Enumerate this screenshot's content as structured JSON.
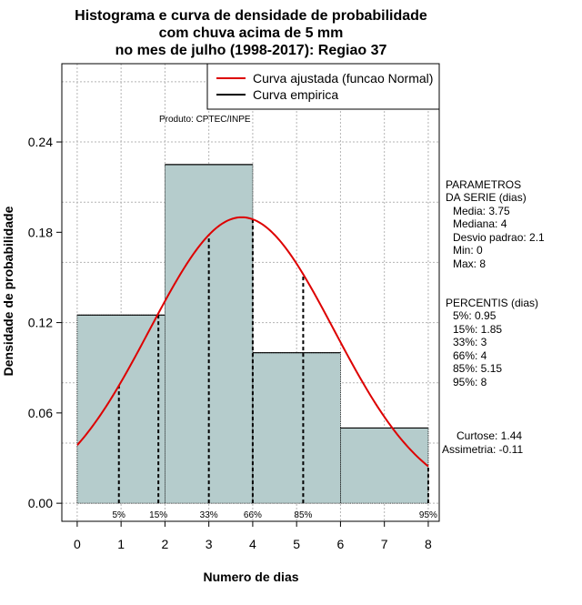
{
  "chart_data": {
    "type": "bar",
    "title_lines": [
      "Histograma e curva de densidade de probabilidade",
      "com chuva acima de 5 mm",
      "no mes de julho (1998-2017): Regiao 37"
    ],
    "xlabel": "Numero de dias",
    "ylabel": "Densidade de probabilidade",
    "xlim": [
      -0.35,
      8.25
    ],
    "ylim": [
      -0.012,
      0.292
    ],
    "x_ticks": [
      0,
      1,
      2,
      3,
      4,
      5,
      6,
      7,
      8
    ],
    "x_tick_labels": [
      "0",
      "1",
      "2",
      "3",
      "4",
      "5",
      "6",
      "7",
      "8"
    ],
    "y_ticks": [
      0.0,
      0.06,
      0.12,
      0.18,
      0.24
    ],
    "y_tick_labels": [
      "0.00",
      "0.06",
      "0.12",
      "0.18",
      "0.24"
    ],
    "grid": true,
    "bins": [
      {
        "x0": 0,
        "x1": 2,
        "density": 0.125
      },
      {
        "x0": 2,
        "x1": 4,
        "density": 0.225
      },
      {
        "x0": 4,
        "x1": 6,
        "density": 0.1
      },
      {
        "x0": 6,
        "x1": 8,
        "density": 0.05
      }
    ],
    "bar_color": "#b5cccc",
    "normal_curve": {
      "mean": 3.75,
      "sd": 2.1,
      "x_range": [
        0,
        8
      ],
      "color": "#dd0000"
    },
    "percentile_lines": [
      {
        "label": "5%",
        "x": 0.95
      },
      {
        "label": "15%",
        "x": 1.85
      },
      {
        "label": "33%",
        "x": 3
      },
      {
        "label": "66%",
        "x": 4
      },
      {
        "label": "85%",
        "x": 5.15
      },
      {
        "label": "95%",
        "x": 8
      }
    ],
    "legend": {
      "position": "top-right",
      "entries": [
        {
          "label": "Curva ajustada (funcao Normal)",
          "color": "#dd0000"
        },
        {
          "label": "Curva empirica",
          "color": "#000000"
        }
      ]
    },
    "product_label": "Produto: CPTEC/INPE",
    "parametros": {
      "heading": [
        "PARAMETROS",
        "DA SERIE (dias)"
      ],
      "items": [
        "Media: 3.75",
        "Mediana: 4",
        "Desvio padrao: 2.1",
        "Min: 0",
        "Max: 8"
      ]
    },
    "percentis": {
      "heading": "PERCENTIS (dias)",
      "items": [
        "5%: 0.95",
        "15%: 1.85",
        "33%: 3",
        "66%: 4",
        "85%: 5.15",
        "95%: 8"
      ]
    },
    "stats": [
      "Curtose: 1.44",
      "Assimetria: -0.11"
    ]
  }
}
